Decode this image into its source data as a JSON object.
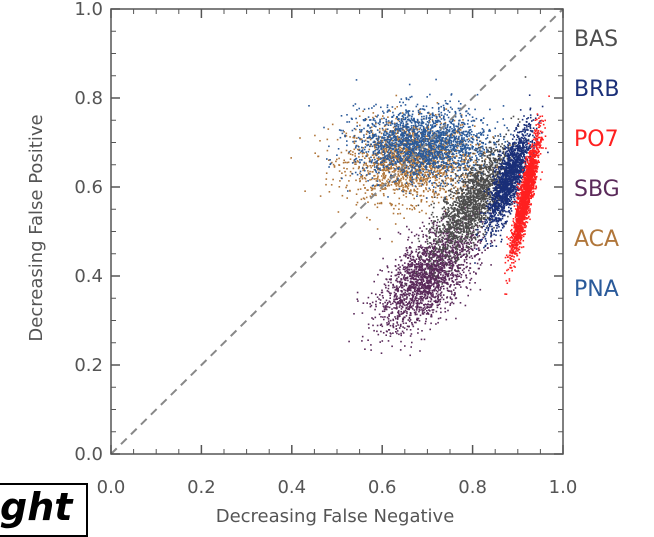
{
  "chart_data": {
    "type": "scatter",
    "xlabel": "Decreasing False Negative",
    "ylabel": "Decreasing False Positive",
    "xlim": [
      0.0,
      1.0
    ],
    "ylim": [
      0.0,
      1.0
    ],
    "xticks": [
      "0.0",
      "0.2",
      "0.4",
      "0.6",
      "0.8",
      "1.0"
    ],
    "yticks": [
      "0.0",
      "0.2",
      "0.4",
      "0.6",
      "0.8",
      "1.0"
    ],
    "grid": false,
    "legend_placement": "right",
    "reference_line": {
      "from": [
        0.0,
        0.0
      ],
      "to": [
        1.0,
        1.0
      ],
      "style": "dashed",
      "color": "#888888"
    },
    "series": [
      {
        "name": "BAS",
        "color": "#4d4d4d",
        "center": [
          0.8,
          0.57
        ],
        "spread": [
          0.05,
          0.05
        ],
        "tilt": 1.2,
        "density": 0.8,
        "draw_order": 3
      },
      {
        "name": "BRB",
        "color": "#1a2f78",
        "center": [
          0.88,
          0.62
        ],
        "spread": [
          0.03,
          0.05
        ],
        "tilt": 1.5,
        "density": 0.7,
        "draw_order": 4
      },
      {
        "name": "PO7",
        "color": "#ff2020",
        "center": [
          0.915,
          0.58
        ],
        "spread": [
          0.012,
          0.065
        ],
        "tilt": 1.4,
        "density": 0.8,
        "draw_order": 5
      },
      {
        "name": "SBG",
        "color": "#5a2a5a",
        "center": [
          0.7,
          0.4
        ],
        "spread": [
          0.06,
          0.05
        ],
        "tilt": 0.9,
        "density": 0.9,
        "draw_order": 2
      },
      {
        "name": "ACA",
        "color": "#b0763a",
        "center": [
          0.66,
          0.66
        ],
        "spread": [
          0.07,
          0.045
        ],
        "tilt": 0.0,
        "density": 0.8,
        "draw_order": 0
      },
      {
        "name": "PNA",
        "color": "#2a5a9a",
        "center": [
          0.69,
          0.7
        ],
        "spread": [
          0.075,
          0.04
        ],
        "tilt": 0.0,
        "density": 0.9,
        "draw_order": 1
      }
    ]
  },
  "corner_label": "ght"
}
